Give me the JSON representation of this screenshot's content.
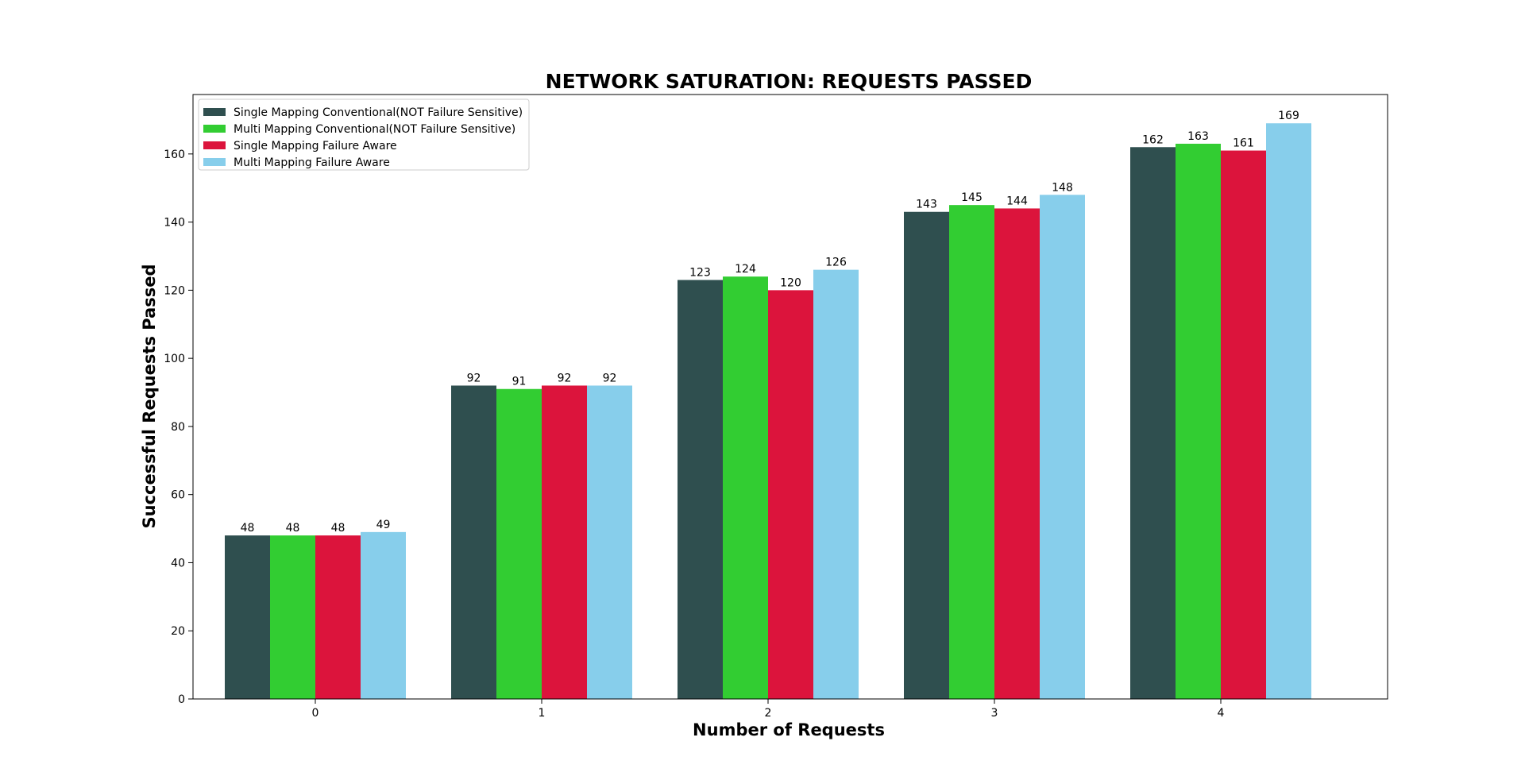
{
  "chart_data": {
    "type": "bar",
    "title": "NETWORK SATURATION: REQUESTS PASSED",
    "xlabel": "Number of Requests",
    "ylabel": "Successful Requests Passed",
    "categories": [
      "0",
      "1",
      "2",
      "3",
      "4"
    ],
    "yticks": [
      0,
      20,
      40,
      60,
      80,
      100,
      120,
      140,
      160
    ],
    "ylim": [
      0,
      177.45
    ],
    "grid": false,
    "legend_position": "top-left",
    "series": [
      {
        "name": "Single Mapping Conventional(NOT Failure Sensitive)",
        "color": "#2f4f4f",
        "values": [
          48,
          92,
          123,
          143,
          162
        ]
      },
      {
        "name": "Multi Mapping Conventional(NOT Failure Sensitive)",
        "color": "#32cd32",
        "values": [
          48,
          91,
          124,
          145,
          163
        ]
      },
      {
        "name": "Single Mapping Failure Aware",
        "color": "#dc143c",
        "values": [
          48,
          92,
          120,
          144,
          161
        ]
      },
      {
        "name": "Multi Mapping Failure Aware",
        "color": "#87ceeb",
        "values": [
          49,
          92,
          126,
          148,
          169
        ]
      }
    ]
  }
}
